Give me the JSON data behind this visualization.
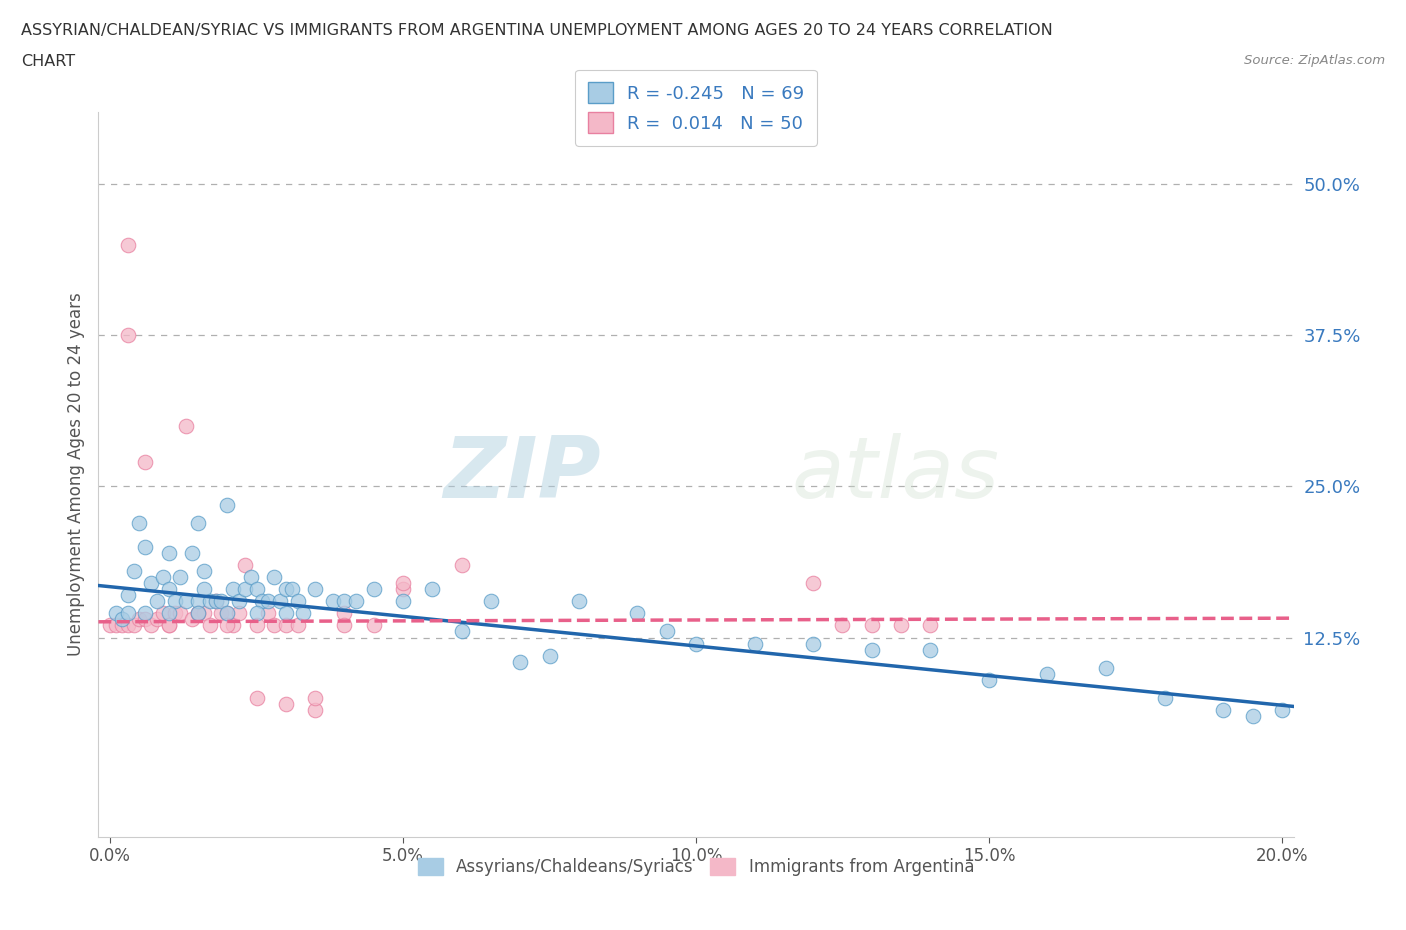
{
  "title_line1": "ASSYRIAN/CHALDEAN/SYRIAC VS IMMIGRANTS FROM ARGENTINA UNEMPLOYMENT AMONG AGES 20 TO 24 YEARS CORRELATION",
  "title_line2": "CHART",
  "source_text": "Source: ZipAtlas.com",
  "ylabel": "Unemployment Among Ages 20 to 24 years",
  "watermark_zip": "ZIP",
  "watermark_atlas": "atlas",
  "xlim": [
    -0.002,
    0.202
  ],
  "ylim": [
    -0.04,
    0.56
  ],
  "xtick_labels": [
    "0.0%",
    "5.0%",
    "10.0%",
    "15.0%",
    "20.0%"
  ],
  "xtick_vals": [
    0.0,
    0.05,
    0.1,
    0.15,
    0.2
  ],
  "ytick_labels": [
    "12.5%",
    "25.0%",
    "37.5%",
    "50.0%"
  ],
  "ytick_vals": [
    0.125,
    0.25,
    0.375,
    0.5
  ],
  "blue_R": -0.245,
  "blue_N": 69,
  "pink_R": 0.014,
  "pink_N": 50,
  "blue_color": "#a8cce4",
  "pink_color": "#f4b8c8",
  "blue_edge_color": "#5a9dc8",
  "pink_edge_color": "#e880a0",
  "blue_line_color": "#2166ac",
  "pink_line_color": "#e8608a",
  "legend_label_blue": "Assyrians/Chaldeans/Syriacs",
  "legend_label_pink": "Immigrants from Argentina",
  "blue_line_start_y": 0.168,
  "blue_line_end_y": 0.068,
  "pink_line_start_y": 0.138,
  "pink_line_end_y": 0.141,
  "blue_x": [
    0.001,
    0.002,
    0.003,
    0.004,
    0.005,
    0.006,
    0.007,
    0.008,
    0.009,
    0.01,
    0.01,
    0.011,
    0.012,
    0.013,
    0.014,
    0.015,
    0.015,
    0.016,
    0.016,
    0.017,
    0.018,
    0.019,
    0.02,
    0.021,
    0.022,
    0.023,
    0.024,
    0.025,
    0.026,
    0.027,
    0.028,
    0.029,
    0.03,
    0.031,
    0.032,
    0.033,
    0.035,
    0.038,
    0.04,
    0.042,
    0.045,
    0.05,
    0.055,
    0.06,
    0.065,
    0.07,
    0.075,
    0.08,
    0.09,
    0.095,
    0.1,
    0.11,
    0.12,
    0.13,
    0.14,
    0.15,
    0.16,
    0.17,
    0.18,
    0.19,
    0.195,
    0.2,
    0.003,
    0.006,
    0.01,
    0.015,
    0.02,
    0.025,
    0.03
  ],
  "blue_y": [
    0.145,
    0.14,
    0.16,
    0.18,
    0.22,
    0.2,
    0.17,
    0.155,
    0.175,
    0.195,
    0.165,
    0.155,
    0.175,
    0.155,
    0.195,
    0.22,
    0.155,
    0.165,
    0.18,
    0.155,
    0.155,
    0.155,
    0.235,
    0.165,
    0.155,
    0.165,
    0.175,
    0.165,
    0.155,
    0.155,
    0.175,
    0.155,
    0.165,
    0.165,
    0.155,
    0.145,
    0.165,
    0.155,
    0.155,
    0.155,
    0.165,
    0.155,
    0.165,
    0.13,
    0.155,
    0.105,
    0.11,
    0.155,
    0.145,
    0.13,
    0.12,
    0.12,
    0.12,
    0.115,
    0.115,
    0.09,
    0.095,
    0.1,
    0.075,
    0.065,
    0.06,
    0.065,
    0.145,
    0.145,
    0.145,
    0.145,
    0.145,
    0.145,
    0.145
  ],
  "pink_x": [
    0.0,
    0.001,
    0.002,
    0.003,
    0.003,
    0.004,
    0.005,
    0.006,
    0.007,
    0.008,
    0.009,
    0.01,
    0.011,
    0.012,
    0.013,
    0.014,
    0.015,
    0.016,
    0.017,
    0.018,
    0.019,
    0.02,
    0.021,
    0.022,
    0.023,
    0.025,
    0.027,
    0.028,
    0.03,
    0.032,
    0.035,
    0.04,
    0.045,
    0.05,
    0.06,
    0.003,
    0.006,
    0.01,
    0.015,
    0.02,
    0.025,
    0.03,
    0.035,
    0.04,
    0.05,
    0.12,
    0.125,
    0.13,
    0.135,
    0.14
  ],
  "pink_y": [
    0.135,
    0.135,
    0.135,
    0.45,
    0.135,
    0.135,
    0.14,
    0.14,
    0.135,
    0.14,
    0.145,
    0.135,
    0.145,
    0.145,
    0.3,
    0.14,
    0.145,
    0.145,
    0.135,
    0.155,
    0.145,
    0.145,
    0.135,
    0.145,
    0.185,
    0.135,
    0.145,
    0.135,
    0.135,
    0.135,
    0.065,
    0.145,
    0.135,
    0.165,
    0.185,
    0.375,
    0.27,
    0.135,
    0.145,
    0.135,
    0.075,
    0.07,
    0.075,
    0.135,
    0.17,
    0.17,
    0.135,
    0.135,
    0.135,
    0.135
  ],
  "background_color": "#ffffff",
  "grid_color": "#b0b0b0"
}
